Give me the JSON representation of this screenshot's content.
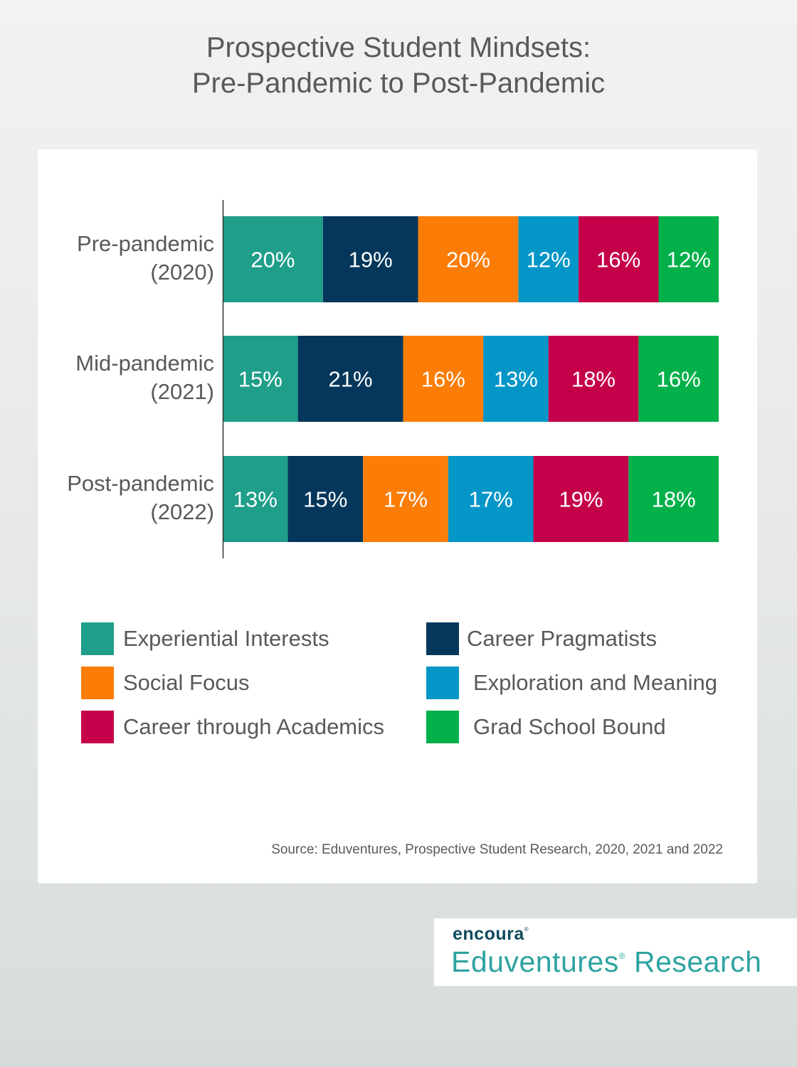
{
  "title": {
    "line1": "Prospective Student Mindsets:",
    "line2": "Pre-Pandemic to Post-Pandemic"
  },
  "chart_data": {
    "type": "bar",
    "orientation": "horizontal",
    "stacked": true,
    "categories": [
      [
        "Pre-pandemic",
        "(2020)"
      ],
      [
        "Mid-pandemic",
        "(2021)"
      ],
      [
        "Post-pandemic",
        "(2022)"
      ]
    ],
    "series": [
      {
        "name": "Experiential Interests",
        "color": "#1f9e89",
        "values": [
          20,
          15,
          13
        ]
      },
      {
        "name": "Career Pragmatists",
        "color": "#04375b",
        "values": [
          19,
          21,
          15
        ]
      },
      {
        "name": "Social Focus",
        "color": "#fb7d07",
        "values": [
          20,
          16,
          17
        ]
      },
      {
        "name": "Exploration and Meaning",
        "color": "#0596c8",
        "values": [
          12,
          13,
          17
        ]
      },
      {
        "name": "Career through Academics",
        "color": "#c5004a",
        "values": [
          16,
          18,
          19
        ]
      },
      {
        "name": "Grad School Bound",
        "color": "#04b04a",
        "values": [
          12,
          16,
          18
        ]
      }
    ],
    "value_suffix": "%",
    "data_label_color": "#ffffff",
    "legend_position": "bottom",
    "grid": false
  },
  "source": "Source: Eduventures, Prospective Student Research, 2020, 2021 and 2022",
  "logo": {
    "brand": "encoura",
    "brand_mark": "®",
    "research_name": "Eduventures",
    "research_mark": "®",
    "research_suffix": " Research"
  }
}
